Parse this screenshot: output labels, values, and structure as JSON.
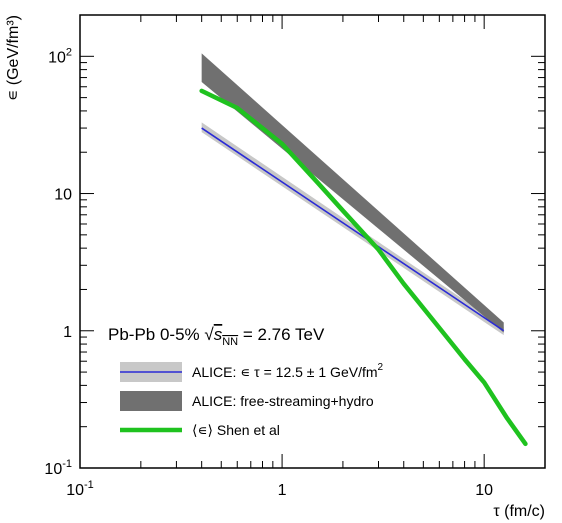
{
  "chart_data": {
    "type": "line",
    "title": "",
    "xlabel": "τ (fm/c)",
    "ylabel": "∊ (GeV/fm³)",
    "x_scale": "log",
    "y_scale": "log",
    "xlim": [
      0.1,
      20
    ],
    "ylim": [
      0.1,
      200
    ],
    "x_ticks": [
      {
        "value": 0.1,
        "label": "10⁻¹"
      },
      {
        "value": 1,
        "label": "1"
      },
      {
        "value": 10,
        "label": "10"
      }
    ],
    "y_ticks": [
      {
        "value": 0.1,
        "label": "10⁻¹"
      },
      {
        "value": 1,
        "label": "1"
      },
      {
        "value": 10,
        "label": "10"
      },
      {
        "value": 100,
        "label": "10²"
      }
    ],
    "annotation": "Pb-Pb 0-5% √sNN = 2.76 TeV",
    "legend_position": "bottom-left",
    "grid": false,
    "series": [
      {
        "name": "ALICE: ∊ τ = 12.5 ± 1 GeV/fm²",
        "kind": "line_with_band",
        "color": "#2a2ad6",
        "band_color": "#c8c8c8",
        "x": [
          0.4,
          12.5
        ],
        "y": [
          30,
          1.0
        ],
        "y_low": [
          28,
          0.93
        ],
        "y_high": [
          33,
          1.07
        ]
      },
      {
        "name": "ALICE: free-streaming+hydro",
        "kind": "band",
        "color": "#707070",
        "x": [
          0.4,
          12.5
        ],
        "y_low": [
          65,
          0.97
        ],
        "y_high": [
          105,
          1.15
        ]
      },
      {
        "name": "⟨∊⟩ Shen et al",
        "kind": "line",
        "color": "#1fc21f",
        "x": [
          0.4,
          0.6,
          1.0,
          1.5,
          2.0,
          3.0,
          4.0,
          6.0,
          8.0,
          10.0,
          13.0,
          16.0
        ],
        "y": [
          56,
          42,
          23,
          12,
          7.5,
          3.9,
          2.2,
          1.05,
          0.62,
          0.42,
          0.23,
          0.15
        ]
      }
    ]
  }
}
